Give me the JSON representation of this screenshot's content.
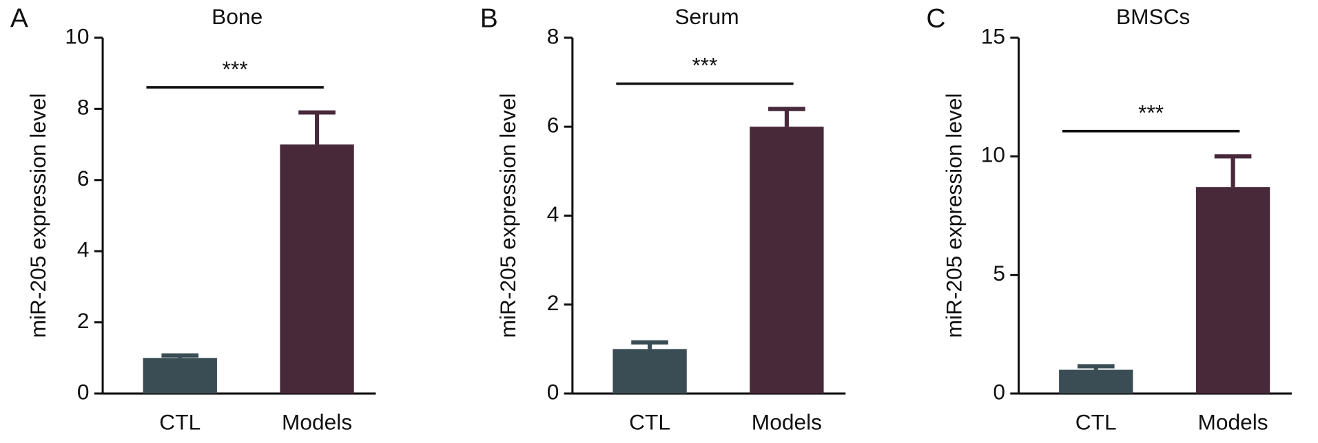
{
  "chart_data": [
    {
      "type": "bar",
      "panel_label": "A",
      "title": "Bone",
      "ylabel": "miR-205 expression level",
      "categories": [
        "CTL",
        "Models"
      ],
      "values": [
        1.0,
        7.0
      ],
      "errors": [
        0.07,
        0.9
      ],
      "colors": [
        "#3b4d54",
        "#47293a"
      ],
      "ylim": [
        0,
        10
      ],
      "yticks": [
        0,
        2,
        4,
        6,
        8,
        10
      ],
      "annotation": "***"
    },
    {
      "type": "bar",
      "panel_label": "B",
      "title": "Serum",
      "ylabel": "miR-205 expression level",
      "categories": [
        "CTL",
        "Models"
      ],
      "values": [
        1.0,
        6.0
      ],
      "errors": [
        0.15,
        0.4
      ],
      "colors": [
        "#3b4d54",
        "#47293a"
      ],
      "ylim": [
        0,
        8
      ],
      "yticks": [
        0,
        2,
        4,
        6,
        8
      ],
      "annotation": "***"
    },
    {
      "type": "bar",
      "panel_label": "C",
      "title": "BMSCs",
      "ylabel": "miR-205 expression level",
      "categories": [
        "CTL",
        "Models"
      ],
      "values": [
        1.0,
        8.7
      ],
      "errors": [
        0.15,
        1.3
      ],
      "colors": [
        "#3b4d54",
        "#47293a"
      ],
      "ylim": [
        0,
        15
      ],
      "yticks": [
        0,
        5,
        10,
        15
      ],
      "annotation": "***"
    }
  ]
}
